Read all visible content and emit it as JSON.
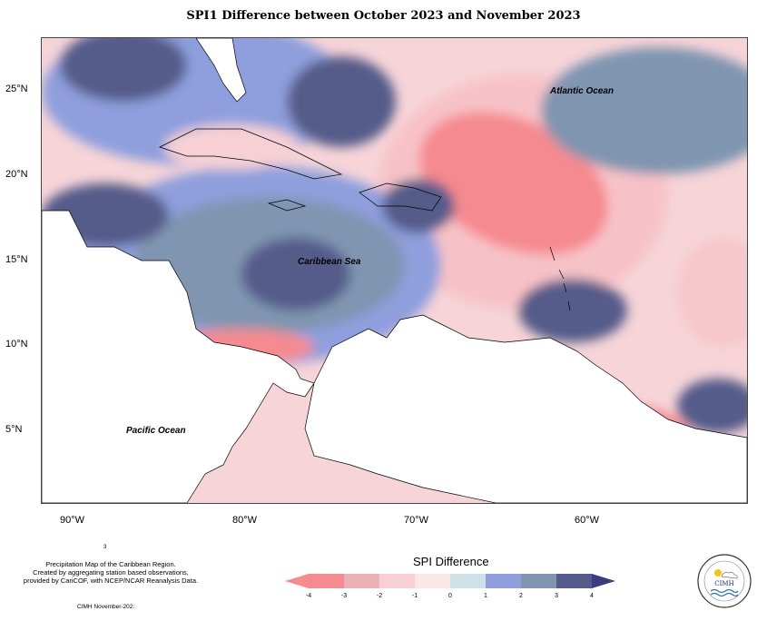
{
  "title": "SPI1 Difference between October 2023 and November 2023",
  "map": {
    "y_axis_labels": [
      "25°N",
      "20°N",
      "15°N",
      "10°N",
      "5°N"
    ],
    "x_axis_labels": [
      "90°W",
      "80°W",
      "70°W",
      "60°W"
    ],
    "place_labels": {
      "atlantic": "Atlantic Ocean",
      "caribbean": "Caribbean Sea",
      "pacific": "Pacific Ocean"
    }
  },
  "legend": {
    "title": "SPI Difference",
    "ticks": [
      "-4",
      "-3",
      "-2",
      "-1",
      "0",
      "1",
      "2",
      "3",
      "4"
    ],
    "colors": [
      "#f58a90",
      "#ebb1b4",
      "#f6d0d5",
      "#fbe6e8",
      "#cde1e6",
      "#8f9fdd",
      "#7f95b0",
      "#545b8a"
    ],
    "left_arrow_color": "#f58a90",
    "right_arrow_color": "#3c3a80"
  },
  "footer": {
    "small_mark": "3",
    "line1": "Precipitation Map of the Caribbean Region.",
    "line2": "Created by aggregating station based observations,",
    "line3": "provided by CariCOF, with NCEP/NCAR Reanalysis Data.",
    "credit": "CIMH November-202:",
    "logo_text": "CIMH"
  }
}
